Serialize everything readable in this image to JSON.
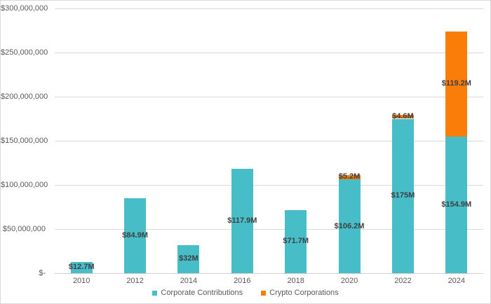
{
  "chart_data": {
    "type": "bar",
    "stacked": true,
    "title": "",
    "xlabel": "",
    "ylabel": "",
    "categories": [
      "2010",
      "2012",
      "2014",
      "2016",
      "2018",
      "2020",
      "2022",
      "2024"
    ],
    "series": [
      {
        "name": "Corporate Contributions",
        "color": "#46bdc7",
        "values": [
          12700000,
          84900000,
          32000000,
          117900000,
          71700000,
          106200000,
          175000000,
          154900000
        ],
        "labels": [
          "$12.7M",
          "$84.9M",
          "$32M",
          "$117.9M",
          "$71.7M",
          "$106.2M",
          "$175M",
          "$154.9M"
        ]
      },
      {
        "name": "Crypto Corporations",
        "color": "#fa7d0a",
        "values": [
          0,
          0,
          0,
          0,
          0,
          5200000,
          4600000,
          119200000
        ],
        "labels": [
          "",
          "",
          "",
          "",
          "",
          "$5.2M",
          "$4.6M",
          "$119.2M"
        ]
      }
    ],
    "ylim": [
      0,
      300000000
    ],
    "ytick_step": 50000000,
    "ytick_labels": [
      "$-",
      "$50,000,000",
      "$100,000,000",
      "$150,000,000",
      "$200,000,000",
      "$250,000,000",
      "$300,000,000"
    ],
    "grid": true,
    "legend_position": "bottom"
  },
  "legend": {
    "items": [
      {
        "label": "Corporate Contributions",
        "color": "#46bdc7"
      },
      {
        "label": "Crypto Corporations",
        "color": "#fa7d0a"
      }
    ]
  },
  "colors": {
    "gridline": "#d9d9d9",
    "axis_line": "#d0d0d0",
    "tick_label": "#595959",
    "data_label": "#3f3f3f",
    "background": "#ffffff"
  }
}
